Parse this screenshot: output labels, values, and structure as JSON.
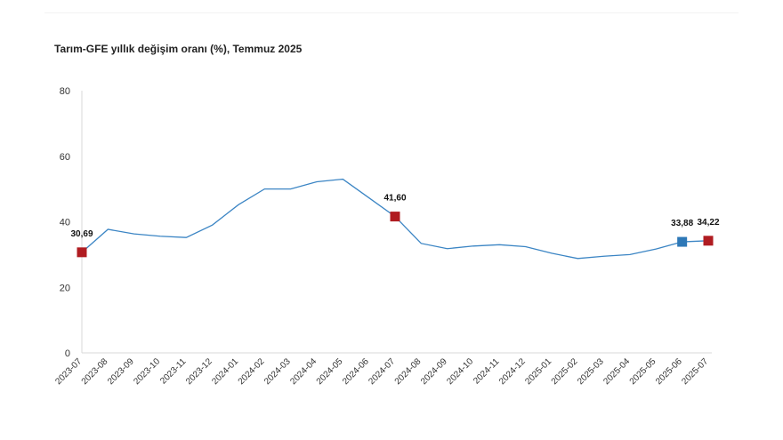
{
  "chart_data": {
    "type": "line",
    "title": "Tarım-GFE yıllık değişim oranı (%), Temmuz 2025",
    "xlabel": "",
    "ylabel": "",
    "ylim": [
      0,
      80
    ],
    "yticks": [
      0,
      20,
      40,
      60,
      80
    ],
    "grid": false,
    "categories": [
      "2023-07",
      "2023-08",
      "2023-09",
      "2023-10",
      "2023-11",
      "2023-12",
      "2024-01",
      "2024-02",
      "2024-03",
      "2024-04",
      "2024-05",
      "2024-06",
      "2024-07",
      "2024-08",
      "2024-09",
      "2024-10",
      "2024-11",
      "2024-12",
      "2025-01",
      "2025-02",
      "2025-03",
      "2025-04",
      "2025-05",
      "2025-06",
      "2025-07"
    ],
    "series": [
      {
        "values": [
          30.69,
          37.7,
          36.3,
          35.6,
          35.2,
          39.0,
          45.2,
          50.0,
          50.0,
          52.2,
          53.0,
          47.3,
          41.6,
          33.4,
          31.8,
          32.6,
          33.0,
          32.4,
          30.4,
          28.8,
          29.5,
          30.0,
          31.7,
          33.88,
          34.22
        ],
        "color": "#3b85c4"
      }
    ],
    "highlighted_points": [
      {
        "category": "2023-07",
        "label": "30,69",
        "color": "#b01c21"
      },
      {
        "category": "2024-07",
        "label": "41,60",
        "color": "#b01c21"
      },
      {
        "category": "2025-06",
        "label": "33,88",
        "color": "#2e78b7"
      },
      {
        "category": "2025-07",
        "label": "34,22",
        "color": "#b01c21"
      }
    ]
  }
}
